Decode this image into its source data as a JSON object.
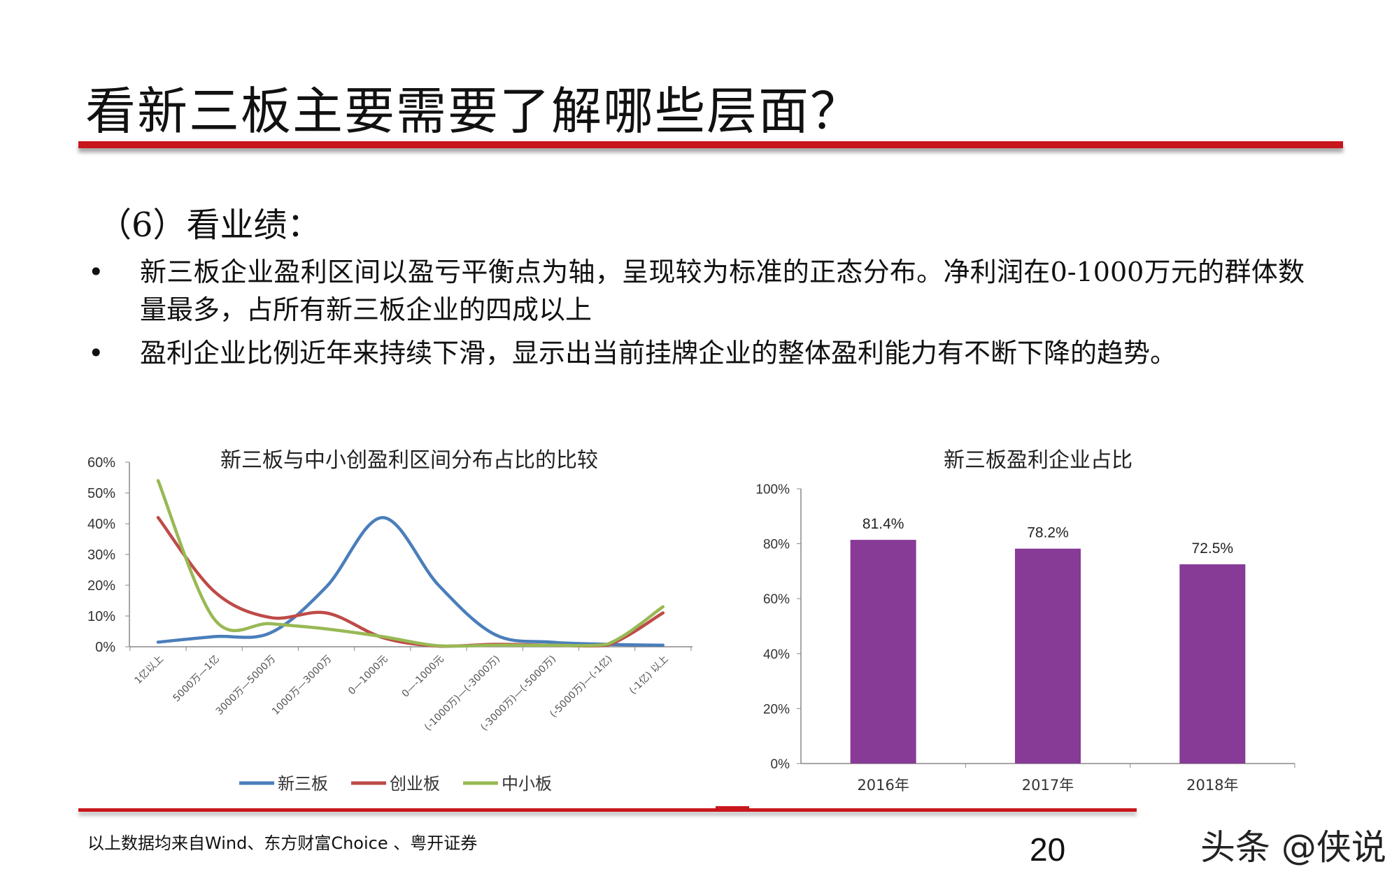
{
  "slide": {
    "title": "看新三板主要需要了解哪些层面？",
    "subtitle": "（6）看业绩：",
    "bullets": [
      {
        "symbol": "•",
        "text": "新三板企业盈利区间以盈亏平衡点为轴，呈现较为标准的正态分布。净利润在0-1000万元的群体数量最多，占所有新三板企业的四成以上"
      },
      {
        "symbol": "•",
        "text": "盈利企业比例近年来持续下滑，显示出当前挂牌企业的整体盈利能力有不断下降的趋势。"
      }
    ],
    "source": "以上数据均来自Wind、东方财富Choice 、粤开证券",
    "page_number": "20",
    "watermark": "头条 @侠说",
    "accent_color": "#c8161d"
  },
  "chart_data": [
    {
      "type": "line",
      "title": "新三板与中小创盈利区间分布占比的比较",
      "categories": [
        "1亿以上",
        "5000万—1亿",
        "3000万—5000万",
        "1000万—3000万",
        "0—1000元",
        "0—-1000元",
        "(-1000万)—(-3000万)",
        "(-3000万)—(-5000万)",
        "(-5000万)—(-1亿)",
        "(-1亿) 以上"
      ],
      "ylim": [
        0,
        60
      ],
      "yticks": [
        "0%",
        "10%",
        "20%",
        "30%",
        "40%",
        "50%",
        "60%"
      ],
      "legend_position": "bottom",
      "smooth": true,
      "series": [
        {
          "name": "新三板",
          "color": "#4a7ebb",
          "values": [
            1.5,
            3.3,
            4.5,
            19.5,
            42,
            20,
            4,
            1.5,
            0.8,
            0.5
          ]
        },
        {
          "name": "创业板",
          "color": "#be4b48",
          "values": [
            42,
            18,
            9.5,
            11,
            3,
            0.2,
            0.8,
            0.5,
            0.5,
            11
          ]
        },
        {
          "name": "中小板",
          "color": "#98b954",
          "values": [
            54,
            9,
            7.5,
            5.8,
            3.3,
            0.3,
            0.5,
            0.5,
            0.8,
            13
          ]
        }
      ]
    },
    {
      "type": "bar",
      "title": "新三板盈利企业占比",
      "categories": [
        "2016年",
        "2017年",
        "2018年"
      ],
      "values": [
        81.4,
        78.2,
        72.5
      ],
      "data_labels": [
        "81.4%",
        "78.2%",
        "72.5%"
      ],
      "ylim": [
        0,
        100
      ],
      "yticks": [
        "0%",
        "20%",
        "40%",
        "60%",
        "80%",
        "100%"
      ],
      "bar_color": "#873a96"
    }
  ]
}
